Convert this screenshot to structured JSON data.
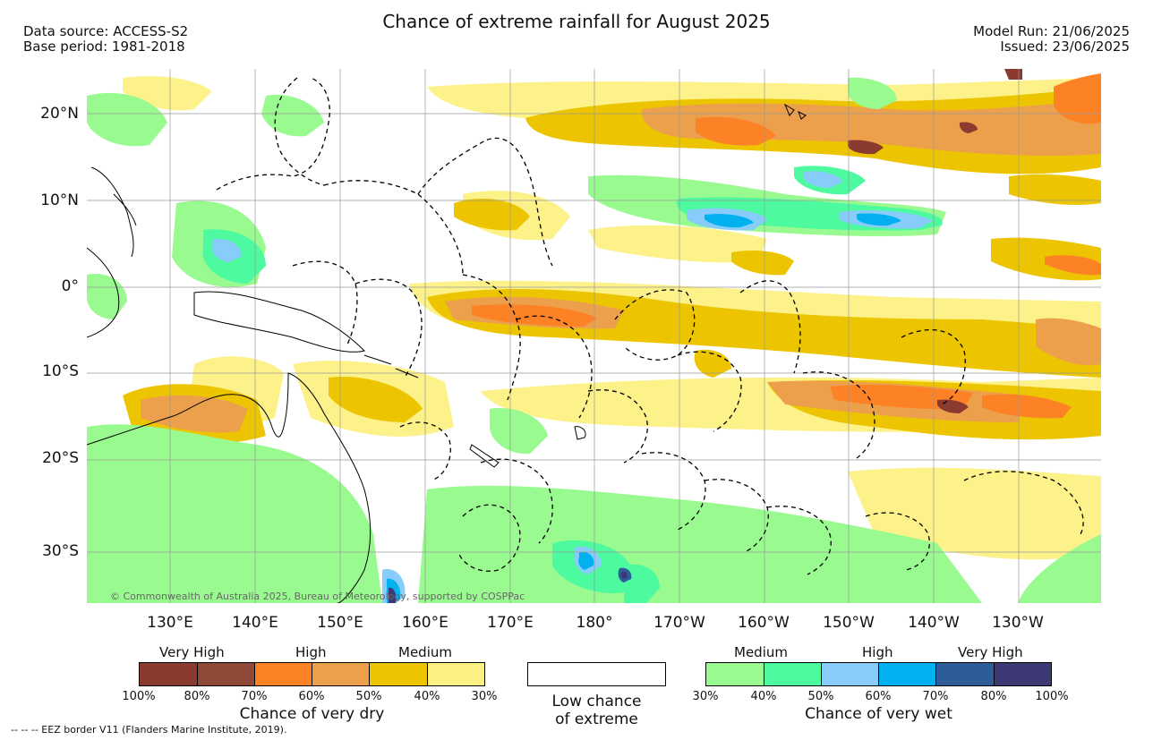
{
  "title": "Chance of extreme rainfall for August 2025",
  "header_left": {
    "line1": "Data source: ACCESS-S2",
    "line2": "Base period: 1981-2018"
  },
  "header_right": {
    "line1": "Model Run: 21/06/2025",
    "line2": "Issued: 23/06/2025"
  },
  "lat_ticks": [
    "20°N",
    "10°N",
    "0°",
    "10°S",
    "20°S",
    "30°S"
  ],
  "lon_ticks": [
    "130°E",
    "140°E",
    "150°E",
    "160°E",
    "170°E",
    "180°",
    "170°W",
    "160°W",
    "150°W",
    "140°W",
    "130°W"
  ],
  "copyright": "© Commonwealth of Australia 2025, Bureau of Meteorology, supported by COSPPac",
  "eez_note": "--  --  -- EEZ border V11 (Flanders Marine Institute, 2019).",
  "legend_dry": {
    "categories": [
      "Very High",
      "High",
      "Medium"
    ],
    "ticks": [
      "100%",
      "80%",
      "70%",
      "60%",
      "50%",
      "40%",
      "30%"
    ],
    "caption": "Chance of very dry",
    "colors": [
      "#8b3a2f",
      "#8e4a36",
      "#fd8125",
      "#eda04b",
      "#ecc500",
      "#fdf184"
    ]
  },
  "legend_low": {
    "line1": "Low chance",
    "line2": "of extreme",
    "color": "#ffffff"
  },
  "legend_wet": {
    "categories": [
      "Medium",
      "High",
      "Very High"
    ],
    "ticks": [
      "30%",
      "40%",
      "50%",
      "60%",
      "70%",
      "80%",
      "100%"
    ],
    "caption": "Chance of very wet",
    "colors": [
      "#99fb8f",
      "#4dfaa0",
      "#87ccfa",
      "#00b0ef",
      "#2e5c98",
      "#3c3974"
    ]
  }
}
